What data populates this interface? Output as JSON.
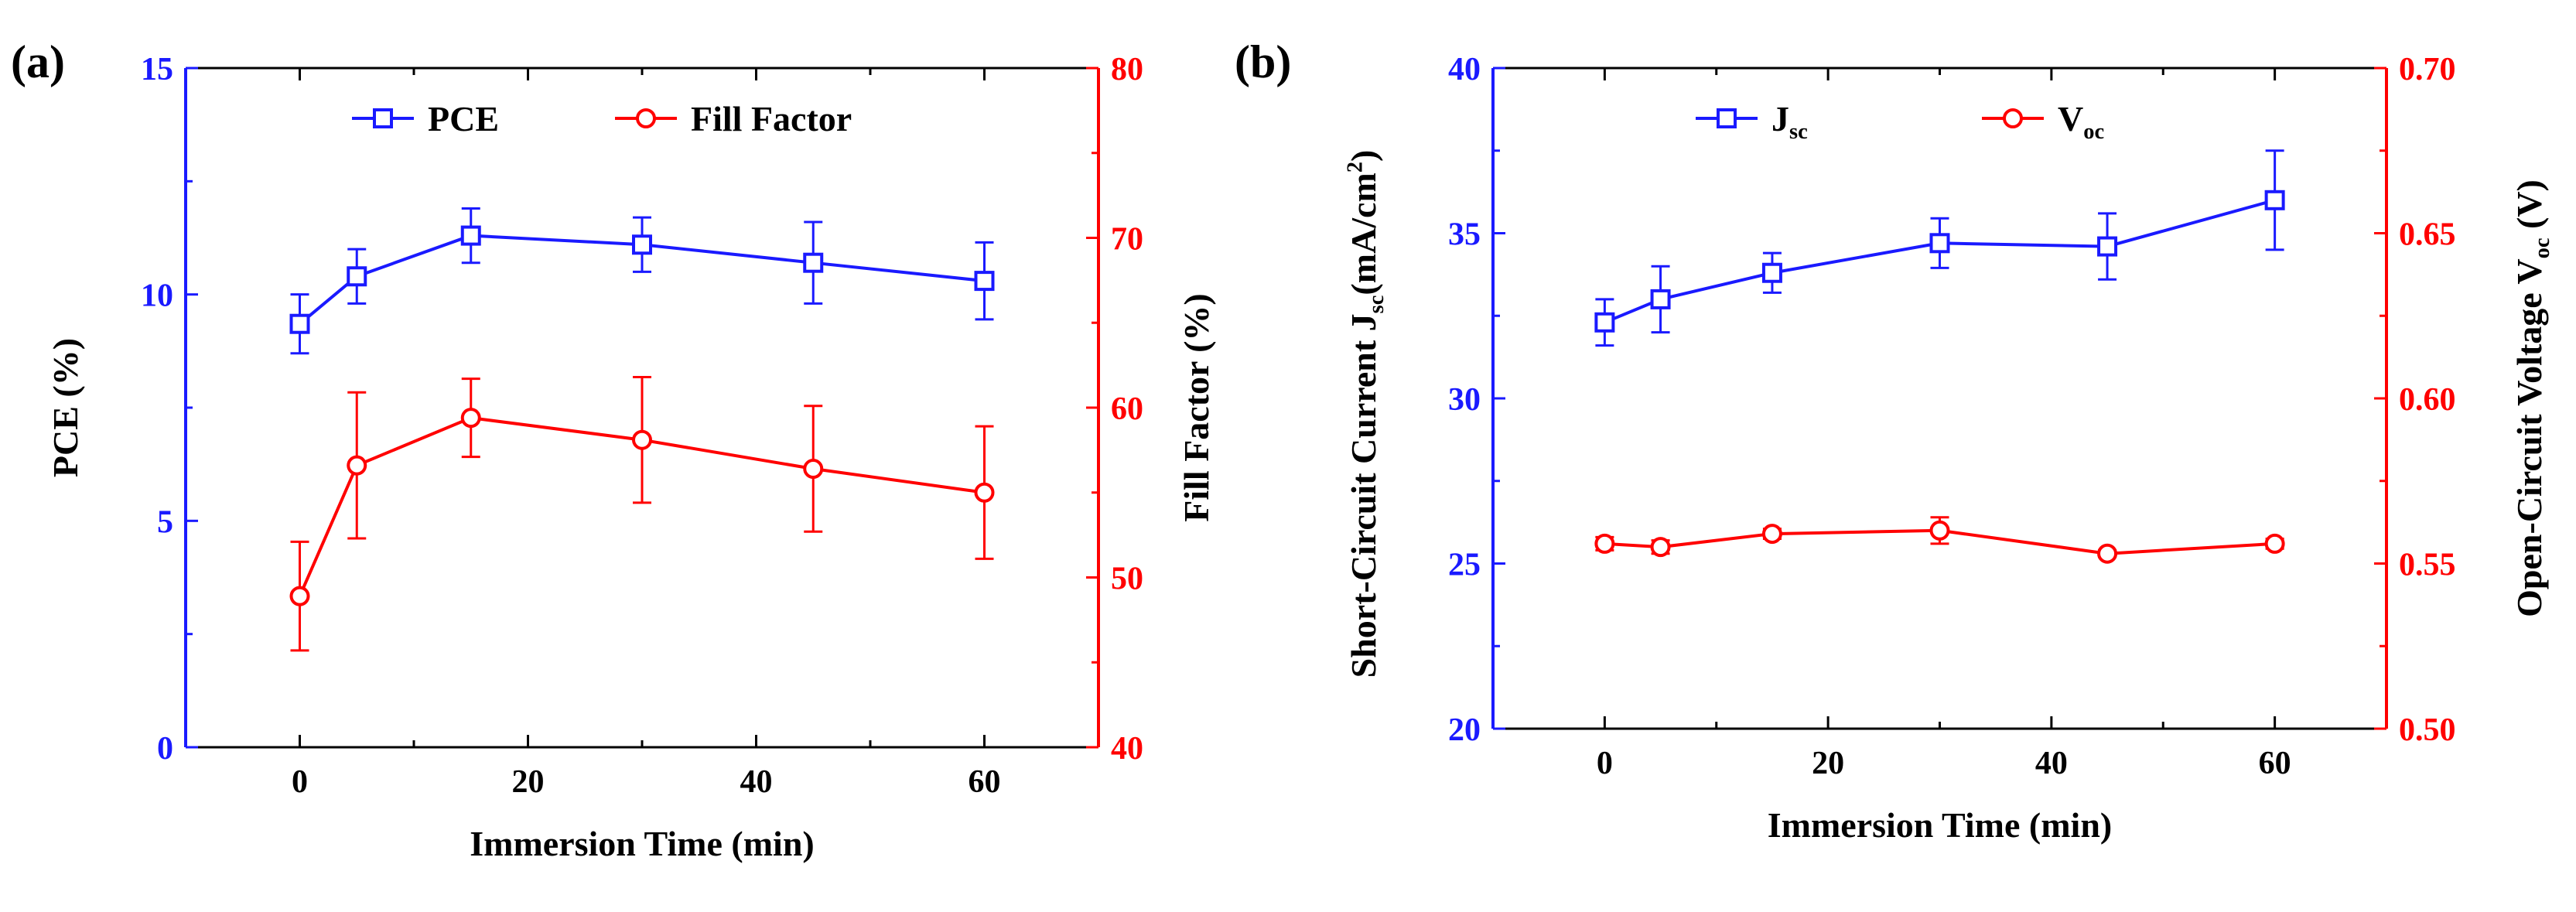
{
  "colors": {
    "blue": "#1a1aff",
    "red": "#ff0000",
    "axis": "#000000"
  },
  "chart_data": [
    {
      "panel_label": "(a)",
      "type": "line",
      "xlabel": "Immersion Time (min)",
      "x_ticks": [
        "0",
        "20",
        "40",
        "60"
      ],
      "xlim": [
        -10,
        70
      ],
      "x": [
        0,
        5,
        15,
        30,
        45,
        60
      ],
      "left_axis": {
        "label": "PCE (%)",
        "ylim": [
          0,
          15
        ],
        "ticks": [
          "0",
          "5",
          "10",
          "15"
        ],
        "color": "#1a1aff"
      },
      "right_axis": {
        "label": "Fill Factor (%)",
        "ylim": [
          40,
          80
        ],
        "ticks": [
          "40",
          "50",
          "60",
          "70",
          "80"
        ],
        "color": "#ff0000"
      },
      "legend": {
        "position": "top-center"
      },
      "series": [
        {
          "name": "PCE",
          "axis": "left",
          "marker": "square",
          "color": "#1a1aff",
          "values": [
            9.35,
            10.4,
            11.3,
            11.1,
            10.7,
            10.3
          ],
          "errors": [
            0.65,
            0.6,
            0.6,
            0.6,
            0.9,
            0.85
          ]
        },
        {
          "name": "Fill Factor",
          "axis": "right",
          "marker": "circle",
          "color": "#ff0000",
          "values": [
            48.9,
            56.6,
            59.4,
            58.1,
            56.4,
            55.0
          ],
          "errors": [
            3.2,
            4.3,
            2.3,
            3.7,
            3.7,
            3.9
          ]
        }
      ]
    },
    {
      "panel_label": "(b)",
      "type": "line",
      "xlabel": "Immersion Time (min)",
      "x_ticks": [
        "0",
        "20",
        "40",
        "60"
      ],
      "xlim": [
        -10,
        70
      ],
      "x": [
        0,
        5,
        15,
        30,
        45,
        60
      ],
      "left_axis": {
        "label_main": "Short-Circuit Current J",
        "label_sub": "sc",
        "label_tail": "(mA/cm",
        "label_sup": "2",
        "label_end": ")",
        "ylim": [
          20,
          40
        ],
        "ticks": [
          "20",
          "25",
          "30",
          "35",
          "40"
        ],
        "color": "#1a1aff"
      },
      "right_axis": {
        "label_main": "Open-Circuit Voltage V",
        "label_sub": "oc",
        "label_tail": " (V)",
        "ylim": [
          0.5,
          0.7
        ],
        "ticks": [
          "0.50",
          "0.55",
          "0.60",
          "0.65",
          "0.70"
        ],
        "color": "#ff0000"
      },
      "legend": {
        "position": "top-center"
      },
      "series": [
        {
          "name": "J",
          "name_sub": "sc",
          "axis": "left",
          "marker": "square",
          "color": "#1a1aff",
          "values": [
            32.3,
            33.0,
            33.8,
            34.7,
            34.6,
            36.0
          ],
          "errors": [
            0.7,
            1.0,
            0.6,
            0.75,
            1.0,
            1.5
          ]
        },
        {
          "name": "V",
          "name_sub": "oc",
          "axis": "right",
          "marker": "circle",
          "color": "#ff0000",
          "values": [
            0.556,
            0.555,
            0.559,
            0.56,
            0.553,
            0.556
          ],
          "errors": [
            0.002,
            0.002,
            0.0015,
            0.004,
            0.001,
            0.0015
          ]
        }
      ]
    }
  ]
}
